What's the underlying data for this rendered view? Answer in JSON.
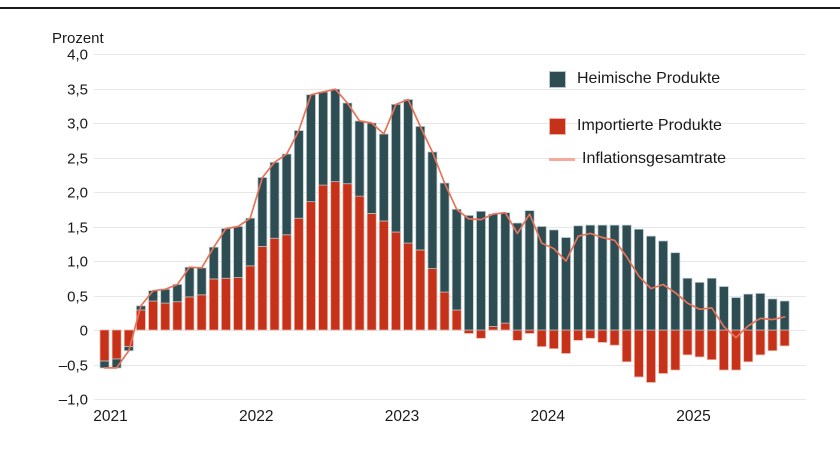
{
  "chart": {
    "y_axis_title": "Prozent",
    "legend": [
      "Heimische Produkte",
      "Importierte Produkte",
      "Inflationsgesamtrate"
    ],
    "y_ticks": [
      {
        "label": "4,0",
        "value": 4.0
      },
      {
        "label": "3,5",
        "value": 3.5
      },
      {
        "label": "3,0",
        "value": 3.0
      },
      {
        "label": "2,5",
        "value": 2.5
      },
      {
        "label": "2,0",
        "value": 2.0
      },
      {
        "label": "1,5",
        "value": 1.5
      },
      {
        "label": "1,0",
        "value": 1.0
      },
      {
        "label": "0,5",
        "value": 0.5
      },
      {
        "label": "0",
        "value": 0.0
      },
      {
        "label": "–0,5",
        "value": -0.5
      },
      {
        "label": "–1,0",
        "value": -1.0
      }
    ],
    "x_ticks": [
      {
        "label": "2021",
        "month_index": 0
      },
      {
        "label": "2022",
        "month_index": 12
      },
      {
        "label": "2023",
        "month_index": 24
      },
      {
        "label": "2024",
        "month_index": 36
      },
      {
        "label": "2025",
        "month_index": 48
      }
    ]
  },
  "colors": {
    "domestic": "#2e4d53",
    "domestic_edge": "#b6c8cb",
    "imported": "#c63119",
    "imported_edge": "#f0b2a5",
    "line": "#e6735a",
    "legend_line": "#f7a99b",
    "gridline": "#e7e7e7",
    "text": "#1a1a1a",
    "divider": "#1a1a1a"
  },
  "chart_data": {
    "type": "bar",
    "stacked": true,
    "grid": "horizontal",
    "legend_position": "upper-right-inside",
    "ylabel": "Prozent",
    "ylim": [
      -1.0,
      4.0
    ],
    "ytick_step": 0.5,
    "x": [
      "2021-01",
      "2021-02",
      "2021-03",
      "2021-04",
      "2021-05",
      "2021-06",
      "2021-07",
      "2021-08",
      "2021-09",
      "2021-10",
      "2021-11",
      "2021-12",
      "2022-01",
      "2022-02",
      "2022-03",
      "2022-04",
      "2022-05",
      "2022-06",
      "2022-07",
      "2022-08",
      "2022-09",
      "2022-10",
      "2022-11",
      "2022-12",
      "2023-01",
      "2023-02",
      "2023-03",
      "2023-04",
      "2023-05",
      "2023-06",
      "2023-07",
      "2023-08",
      "2023-09",
      "2023-10",
      "2023-11",
      "2023-12",
      "2024-01",
      "2024-02",
      "2024-03",
      "2024-04",
      "2024-05",
      "2024-06",
      "2024-07",
      "2024-08",
      "2024-09",
      "2024-10",
      "2024-11",
      "2024-12",
      "2025-01",
      "2025-02",
      "2025-03",
      "2025-04",
      "2025-05",
      "2025-06",
      "2025-07",
      "2025-08",
      "2025-09"
    ],
    "series": [
      {
        "name": "Importierte Produkte",
        "render": "bar",
        "color": "#c63119",
        "values": [
          -0.45,
          -0.42,
          -0.24,
          0.29,
          0.42,
          0.39,
          0.41,
          0.48,
          0.51,
          0.74,
          0.75,
          0.76,
          0.93,
          1.21,
          1.33,
          1.38,
          1.62,
          1.86,
          2.1,
          2.15,
          2.12,
          1.94,
          1.69,
          1.58,
          1.42,
          1.26,
          1.16,
          0.89,
          0.55,
          0.29,
          -0.05,
          -0.12,
          0.05,
          0.1,
          -0.15,
          -0.05,
          -0.24,
          -0.27,
          -0.34,
          -0.15,
          -0.12,
          -0.18,
          -0.22,
          -0.46,
          -0.68,
          -0.76,
          -0.63,
          -0.58,
          -0.36,
          -0.39,
          -0.43,
          -0.58,
          -0.58,
          -0.46,
          -0.36,
          -0.3,
          -0.23
        ]
      },
      {
        "name": "Heimische Produkte",
        "render": "bar",
        "color": "#2e4d53",
        "values": [
          -0.1,
          -0.13,
          -0.06,
          0.06,
          0.15,
          0.2,
          0.25,
          0.43,
          0.39,
          0.46,
          0.72,
          0.74,
          0.69,
          1.0,
          1.1,
          1.17,
          1.27,
          1.55,
          1.35,
          1.34,
          1.17,
          1.09,
          1.31,
          1.26,
          1.85,
          2.08,
          1.79,
          1.69,
          1.58,
          1.46,
          1.66,
          1.72,
          1.63,
          1.6,
          1.55,
          1.73,
          1.5,
          1.45,
          1.34,
          1.51,
          1.52,
          1.52,
          1.52,
          1.52,
          1.46,
          1.36,
          1.29,
          1.12,
          0.75,
          0.69,
          0.75,
          0.63,
          0.47,
          0.52,
          0.53,
          0.45,
          0.42
        ]
      },
      {
        "name": "Inflationsgesamtrate",
        "render": "line",
        "color": "#e6735a",
        "values": [
          -0.55,
          -0.55,
          -0.3,
          0.35,
          0.57,
          0.59,
          0.66,
          0.91,
          0.9,
          1.2,
          1.47,
          1.5,
          1.62,
          2.21,
          2.43,
          2.55,
          2.89,
          3.41,
          3.45,
          3.49,
          3.29,
          3.03,
          3.0,
          2.84,
          3.27,
          3.34,
          2.95,
          2.58,
          2.13,
          1.75,
          1.61,
          1.6,
          1.68,
          1.7,
          1.4,
          1.68,
          1.26,
          1.18,
          1.0,
          1.36,
          1.4,
          1.34,
          1.3,
          1.06,
          0.78,
          0.6,
          0.66,
          0.54,
          0.39,
          0.3,
          0.32,
          0.05,
          -0.11,
          0.06,
          0.17,
          0.15,
          0.19
        ]
      }
    ]
  }
}
